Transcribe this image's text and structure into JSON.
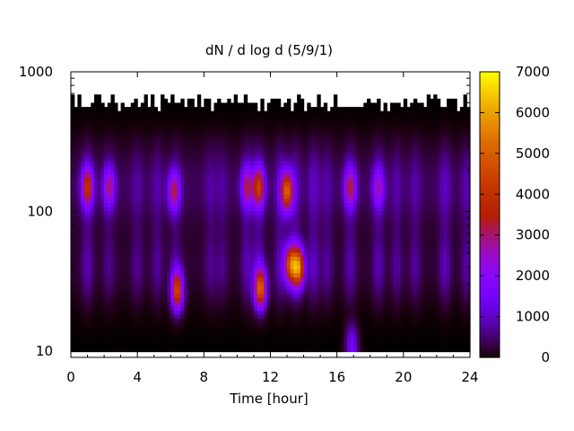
{
  "chart_data": {
    "type": "heatmap",
    "title": "dN / d log d (5/9/1)",
    "xlabel": "Time [hour]",
    "ylabel": "",
    "x_range": [
      0,
      24
    ],
    "x_ticks": [
      0,
      4,
      8,
      12,
      16,
      20,
      24
    ],
    "y_scale": "log",
    "y_range": [
      9,
      1000
    ],
    "y_ticks": [
      10,
      100,
      1000
    ],
    "colorbar": {
      "range": [
        0,
        7000
      ],
      "ticks": [
        0,
        1000,
        2000,
        3000,
        4000,
        5000,
        6000,
        7000
      ],
      "colormap": "gnuplot palette rgbformulae 7,5,15 (black-blue-purple-red-orange-yellow)"
    },
    "grid": false,
    "features": {
      "upper_diameter_limit_approx": 600,
      "hotspots": [
        {
          "time_hour": 1.0,
          "diameter": 150,
          "value": 3300
        },
        {
          "time_hour": 2.3,
          "diameter": 150,
          "value": 2300
        },
        {
          "time_hour": 6.2,
          "diameter": 140,
          "value": 2600
        },
        {
          "time_hour": 6.4,
          "diameter": 27,
          "value": 4300
        },
        {
          "time_hour": 10.6,
          "diameter": 150,
          "value": 2300
        },
        {
          "time_hour": 11.3,
          "diameter": 150,
          "value": 3400
        },
        {
          "time_hour": 11.4,
          "diameter": 28,
          "value": 4700
        },
        {
          "time_hour": 13.0,
          "diameter": 140,
          "value": 4600
        },
        {
          "time_hour": 13.2,
          "diameter": 42,
          "value": 4300
        },
        {
          "time_hour": 13.7,
          "diameter": 40,
          "value": 4900
        },
        {
          "time_hour": 16.8,
          "diameter": 150,
          "value": 2500
        },
        {
          "time_hour": 16.9,
          "diameter": 10,
          "value": 4500
        },
        {
          "time_hour": 18.5,
          "diameter": 150,
          "value": 1800
        }
      ]
    }
  }
}
